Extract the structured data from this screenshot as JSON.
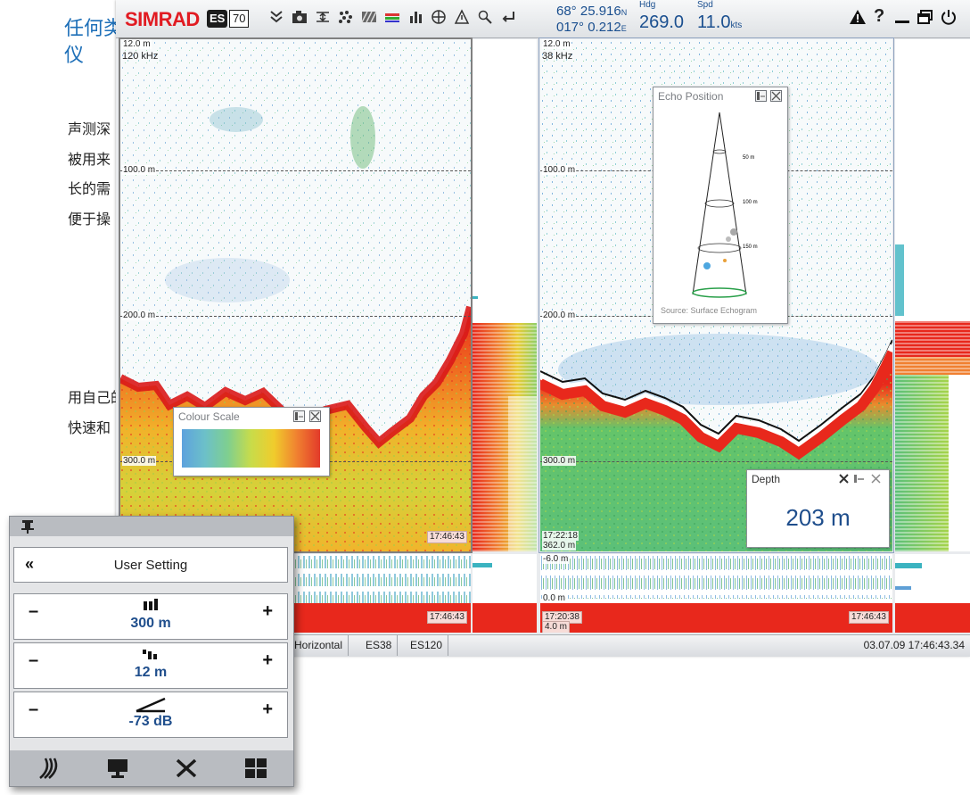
{
  "left_text": {
    "line1": "任何类",
    "line2": "仪",
    "para1": [
      "声测深",
      "被用来",
      "长的需",
      "便于操"
    ],
    "para2": [
      "用自己的",
      "快速和"
    ]
  },
  "topbar": {
    "logo": "SIMRAD",
    "badge": "ES",
    "model": "70",
    "lat": "68° 25.916",
    "lat_dir": "N",
    "lon": "017° 0.212",
    "lon_dir": "E",
    "hdg_label": "Hdg",
    "hdg_value": "269.0",
    "spd_label": "Spd",
    "spd_value": "11.0",
    "spd_unit": "kts",
    "icons": [
      "chevron-down-icon",
      "camera-icon",
      "range-icon",
      "scatter-icon",
      "hatch-icon",
      "colour-bar-icon",
      "bar-chart-icon",
      "crosshair-icon",
      "warning-triangle-icon",
      "magnifier-icon",
      "return-icon"
    ]
  },
  "echogram_left": {
    "top_depth": "12.0 m",
    "freq": "120 kHz",
    "depth_100": "100.0 m",
    "depth_200": "200.0 m",
    "depth_300": "300.0 m",
    "time": "17:46:43",
    "bottom_time": "17:46:43"
  },
  "echogram_right": {
    "top_depth": "12.0 m",
    "freq": "38 kHz",
    "depth_100": "100.0 m",
    "depth_200": "200.0 m",
    "depth_300": "300.0 m",
    "time_start": "17:22:18",
    "depth_start": "362.0 m",
    "surface_top": "-6.0 m",
    "surface_bottom": "0.0 m",
    "bottom_time_start": "17:20:38",
    "bottom_depth": "4.0 m",
    "bottom_time": "17:46:43"
  },
  "colour_scale": {
    "title": "Colour Scale",
    "colors": [
      "#5ea2dd",
      "#6cc0c9",
      "#7fcf8f",
      "#c8dc4a",
      "#f0cc2c",
      "#f08030",
      "#e23a2a"
    ]
  },
  "echo_position": {
    "title": "Echo Position",
    "label_50": "50 m",
    "label_100": "100 m",
    "label_150": "150 m",
    "source": "Source: Surface Echogram"
  },
  "depth_window": {
    "title": "Depth",
    "value": "203 m"
  },
  "statusbar": {
    "tabs": [
      "Horizontal",
      "ES38",
      "ES120"
    ],
    "datetime": "03.07.09  17:46:43.34"
  },
  "menu": {
    "back_icon": "«",
    "title": "User Setting",
    "rows": [
      {
        "minus": "–",
        "value": "300 m",
        "plus": "+",
        "icon": "range-bars-icon"
      },
      {
        "minus": "–",
        "value": "12 m",
        "plus": "+",
        "icon": "start-range-icon"
      },
      {
        "minus": "–",
        "value": "-73 dB",
        "plus": "+",
        "icon": "gain-slope-icon"
      }
    ],
    "footer_icons": [
      "echogram-icon",
      "display-icon",
      "tools-icon",
      "layout-icon"
    ]
  }
}
